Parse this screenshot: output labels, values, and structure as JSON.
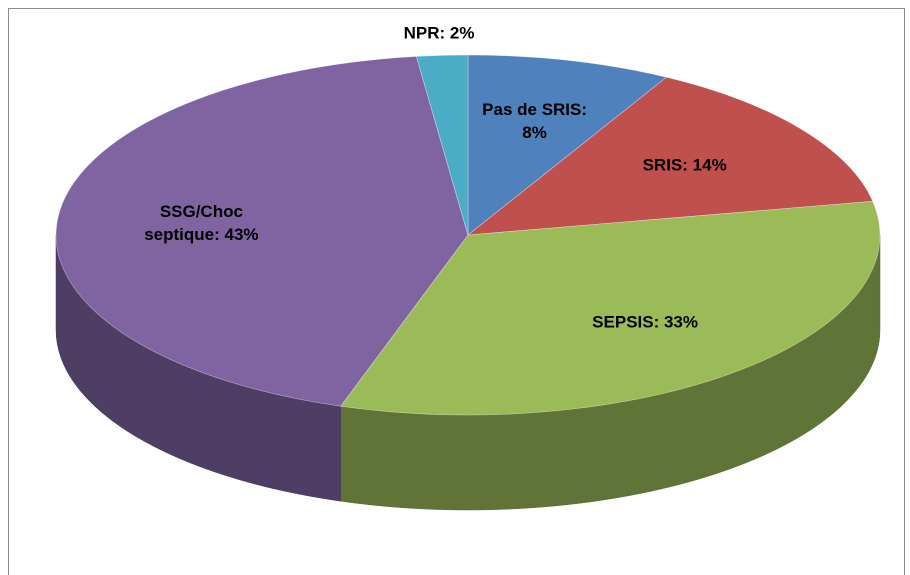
{
  "chart_data": {
    "type": "pie3d",
    "values": [
      8,
      14,
      33,
      43,
      2
    ],
    "value_labels": [
      "Pas de SRIS: 8%",
      "SRIS: 14%",
      "SEPSIS: 33%",
      "SSG/Choc septique: 43%",
      "NPR: 2%"
    ],
    "colors": [
      "#4f81bd",
      "#c0504d",
      "#9bbb59",
      "#8064a2",
      "#4bacc6"
    ]
  }
}
